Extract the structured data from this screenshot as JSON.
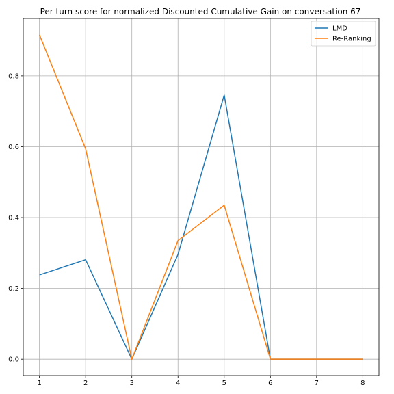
{
  "chart_data": {
    "type": "line",
    "title": "Per turn score for normalized Discounted Cumulative Gain on conversation 67",
    "xlabel": "",
    "ylabel": "",
    "x": [
      1,
      2,
      3,
      4,
      5,
      6,
      7,
      8
    ],
    "xticks": [
      "1",
      "2",
      "3",
      "4",
      "5",
      "6",
      "7",
      "8"
    ],
    "yticks": [
      "0.0",
      "0.2",
      "0.4",
      "0.6",
      "0.8"
    ],
    "ytick_values": [
      0.0,
      0.2,
      0.4,
      0.6,
      0.8
    ],
    "xlim": [
      0.65,
      8.35
    ],
    "ylim": [
      -0.046,
      0.962
    ],
    "grid": true,
    "legend_position": "top-right",
    "series": [
      {
        "name": "LMD",
        "color": "#1f77b4",
        "values": [
          0.238,
          0.281,
          0.0,
          0.296,
          0.746,
          0.0,
          0.0,
          0.0
        ]
      },
      {
        "name": "Re-Ranking",
        "color": "#ff7f0e",
        "values": [
          0.916,
          0.594,
          0.0,
          0.335,
          0.435,
          0.0,
          0.0,
          0.0
        ]
      }
    ]
  }
}
